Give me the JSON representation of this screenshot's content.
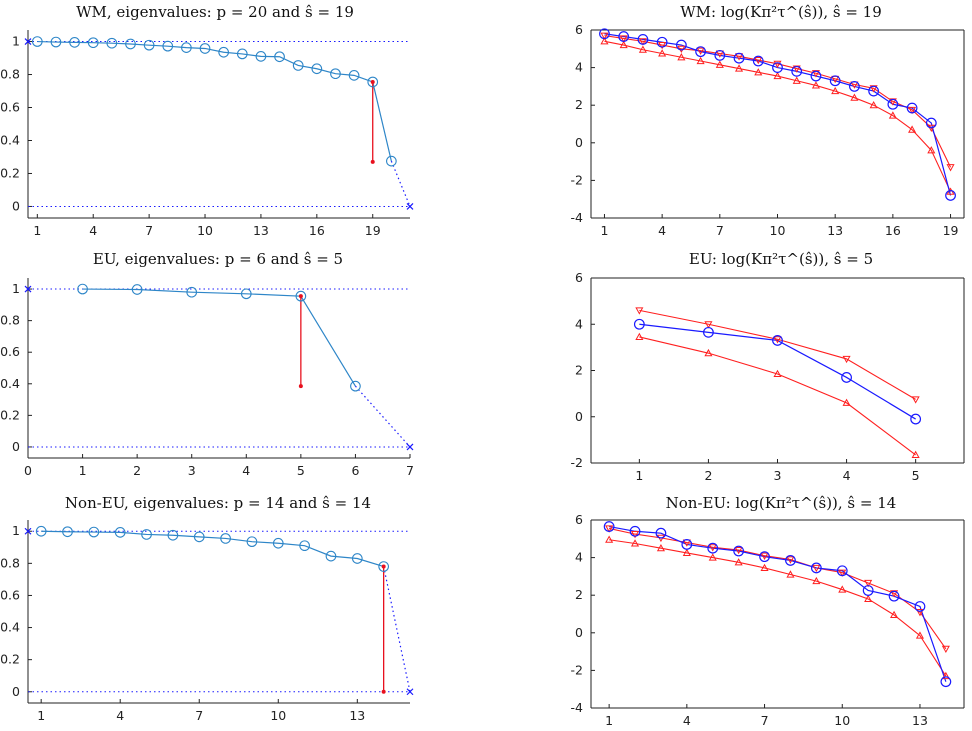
{
  "chart_data": [
    {
      "type": "line",
      "title": "WM, eigenvalues: p = 20 and ŝ = 19",
      "xlim": [
        0.5,
        21
      ],
      "ylim": [
        -0.07,
        1.07
      ],
      "xticks": [
        1,
        4,
        7,
        10,
        13,
        16,
        19
      ],
      "yticks": [
        0,
        0.2,
        0.4,
        0.6,
        0.8,
        1
      ],
      "ytick_labels": [
        "0",
        "0.2",
        "0.4",
        "0.6",
        "0.8",
        "1"
      ],
      "box": "left-bottom",
      "series": [
        {
          "name": "eigenvalues",
          "x": [
            1,
            2,
            3,
            4,
            5,
            6,
            7,
            8,
            9,
            10,
            11,
            12,
            13,
            14,
            15,
            16,
            17,
            18,
            19,
            20
          ],
          "y": [
            1,
            0.997,
            0.995,
            0.993,
            0.99,
            0.985,
            0.978,
            0.972,
            0.963,
            0.958,
            0.935,
            0.925,
            0.91,
            0.908,
            0.855,
            0.835,
            0.805,
            0.795,
            0.755,
            0.275
          ]
        },
        {
          "name": "extrapolation",
          "x": [
            20,
            21
          ],
          "y": [
            0.275,
            0
          ]
        },
        {
          "name": "selected",
          "x": 19,
          "y": 0.755,
          "y_low": 0.27
        }
      ],
      "endpoints": [
        {
          "x": 0.5,
          "y": 1
        },
        {
          "x": 21,
          "y": 0
        }
      ]
    },
    {
      "type": "line",
      "title": "WM: log(Kπ²τ^(ŝ)), ŝ = 19",
      "xlim": [
        0.3,
        19.7
      ],
      "ylim": [
        -4,
        6
      ],
      "xticks": [
        1,
        4,
        7,
        10,
        13,
        16,
        19
      ],
      "yticks": [
        -4,
        -2,
        0,
        2,
        4,
        6
      ],
      "ytick_labels": [
        "-4",
        "-2",
        "0",
        "2",
        "4",
        "6"
      ],
      "box": "full",
      "series": [
        {
          "name": "estimate",
          "x": [
            1,
            2,
            3,
            4,
            5,
            6,
            7,
            8,
            9,
            10,
            11,
            12,
            13,
            14,
            15,
            16,
            17,
            18,
            19
          ],
          "y": [
            5.8,
            5.65,
            5.5,
            5.35,
            5.2,
            4.85,
            4.65,
            4.5,
            4.35,
            4.0,
            3.8,
            3.55,
            3.3,
            3.0,
            2.75,
            2.05,
            1.85,
            1.05,
            -2.8
          ]
        },
        {
          "name": "upper",
          "x": [
            1,
            2,
            3,
            4,
            5,
            6,
            7,
            8,
            9,
            10,
            11,
            12,
            13,
            14,
            15,
            16,
            17,
            18,
            19
          ],
          "y": [
            5.7,
            5.55,
            5.4,
            5.2,
            5.0,
            4.9,
            4.75,
            4.6,
            4.4,
            4.2,
            3.95,
            3.7,
            3.4,
            3.1,
            2.9,
            2.2,
            1.75,
            0.8,
            -1.3
          ]
        },
        {
          "name": "lower",
          "x": [
            1,
            2,
            3,
            4,
            5,
            6,
            7,
            8,
            9,
            10,
            11,
            12,
            13,
            14,
            15,
            16,
            17,
            18,
            19
          ],
          "y": [
            5.4,
            5.2,
            4.95,
            4.75,
            4.55,
            4.35,
            4.15,
            3.95,
            3.75,
            3.55,
            3.3,
            3.05,
            2.75,
            2.4,
            2.0,
            1.45,
            0.7,
            -0.4,
            -2.6
          ]
        }
      ]
    },
    {
      "type": "line",
      "title": "EU, eigenvalues: p = 6 and ŝ = 5",
      "xlim": [
        0,
        7
      ],
      "ylim": [
        -0.07,
        1.07
      ],
      "xticks": [
        0,
        1,
        2,
        3,
        4,
        5,
        6,
        7
      ],
      "yticks": [
        0,
        0.2,
        0.4,
        0.6,
        0.8,
        1
      ],
      "ytick_labels": [
        "0",
        "0.2",
        "0.4",
        "0.6",
        "0.8",
        "1"
      ],
      "box": "left-bottom",
      "series": [
        {
          "name": "eigenvalues",
          "x": [
            1,
            2,
            3,
            4,
            5,
            6
          ],
          "y": [
            1,
            0.997,
            0.98,
            0.97,
            0.955,
            0.385
          ]
        },
        {
          "name": "extrapolation",
          "x": [
            6,
            7
          ],
          "y": [
            0.385,
            0
          ]
        },
        {
          "name": "selected",
          "x": 5,
          "y": 0.955,
          "y_low": 0.385
        }
      ],
      "endpoints": [
        {
          "x": 0,
          "y": 1
        },
        {
          "x": 7,
          "y": 0
        }
      ]
    },
    {
      "type": "line",
      "title": "EU: log(Kπ²τ^(ŝ)), ŝ = 5",
      "xlim": [
        0.3,
        5.7
      ],
      "ylim": [
        -2,
        6
      ],
      "xticks": [
        1,
        2,
        3,
        4,
        5
      ],
      "yticks": [
        -2,
        0,
        2,
        4,
        6
      ],
      "ytick_labels": [
        "-2",
        "0",
        "2",
        "4",
        "6"
      ],
      "box": "full",
      "series": [
        {
          "name": "estimate",
          "x": [
            1,
            2,
            3,
            4,
            5
          ],
          "y": [
            4.0,
            3.65,
            3.3,
            1.7,
            -0.1
          ]
        },
        {
          "name": "upper",
          "x": [
            1,
            2,
            3,
            4,
            5
          ],
          "y": [
            4.6,
            4.0,
            3.35,
            2.5,
            0.75
          ]
        },
        {
          "name": "lower",
          "x": [
            1,
            2,
            3,
            4,
            5
          ],
          "y": [
            3.45,
            2.75,
            1.85,
            0.6,
            -1.65
          ]
        }
      ]
    },
    {
      "type": "line",
      "title": "Non-EU, eigenvalues: p = 14 and ŝ = 14",
      "xlim": [
        0.5,
        15
      ],
      "ylim": [
        -0.07,
        1.07
      ],
      "xticks": [
        1,
        4,
        7,
        10,
        13
      ],
      "yticks": [
        0,
        0.2,
        0.4,
        0.6,
        0.8,
        1
      ],
      "ytick_labels": [
        "0",
        "0.2",
        "0.4",
        "0.6",
        "0.8",
        "1"
      ],
      "box": "left-bottom",
      "series": [
        {
          "name": "eigenvalues",
          "x": [
            1,
            2,
            3,
            4,
            5,
            6,
            7,
            8,
            9,
            10,
            11,
            12,
            13,
            14
          ],
          "y": [
            1,
            0.997,
            0.995,
            0.993,
            0.98,
            0.975,
            0.965,
            0.955,
            0.935,
            0.925,
            0.91,
            0.845,
            0.83,
            0.78
          ]
        },
        {
          "name": "extrapolation",
          "x": [
            14,
            15
          ],
          "y": [
            0.78,
            0
          ]
        },
        {
          "name": "selected",
          "x": 14,
          "y": 0.78,
          "y_low": 0
        }
      ],
      "endpoints": [
        {
          "x": 0.5,
          "y": 1
        },
        {
          "x": 15,
          "y": 0
        }
      ]
    },
    {
      "type": "line",
      "title": "Non-EU: log(Kπ²τ^(ŝ)), ŝ = 14",
      "xlim": [
        0.3,
        14.7
      ],
      "ylim": [
        -4,
        6
      ],
      "xticks": [
        1,
        4,
        7,
        10,
        13
      ],
      "yticks": [
        -4,
        -2,
        0,
        2,
        4,
        6
      ],
      "ytick_labels": [
        "-4",
        "-2",
        "0",
        "2",
        "4",
        "6"
      ],
      "box": "full",
      "series": [
        {
          "name": "estimate",
          "x": [
            1,
            2,
            3,
            4,
            5,
            6,
            7,
            8,
            9,
            10,
            11,
            12,
            13,
            14
          ],
          "y": [
            5.65,
            5.4,
            5.3,
            4.7,
            4.5,
            4.35,
            4.05,
            3.85,
            3.45,
            3.3,
            2.25,
            1.95,
            1.4,
            -2.6
          ]
        },
        {
          "name": "upper",
          "x": [
            1,
            2,
            3,
            4,
            5,
            6,
            7,
            8,
            9,
            10,
            11,
            12,
            13,
            14
          ],
          "y": [
            5.55,
            5.25,
            5.05,
            4.8,
            4.55,
            4.4,
            4.1,
            3.9,
            3.45,
            3.2,
            2.65,
            2.1,
            1.1,
            -0.85
          ]
        },
        {
          "name": "lower",
          "x": [
            1,
            2,
            3,
            4,
            5,
            6,
            7,
            8,
            9,
            10,
            11,
            12,
            13,
            14
          ],
          "y": [
            4.95,
            4.75,
            4.5,
            4.25,
            4.0,
            3.75,
            3.45,
            3.1,
            2.75,
            2.3,
            1.8,
            0.95,
            -0.15,
            -2.3
          ]
        }
      ]
    }
  ],
  "colors": {
    "eigen_line": "#2e86c8",
    "estimate_line": "#1a1aff",
    "bounds_line": "#ff2020",
    "selected": "#e8101e",
    "endpoint": "#1a1aff",
    "axis": "#222222"
  }
}
